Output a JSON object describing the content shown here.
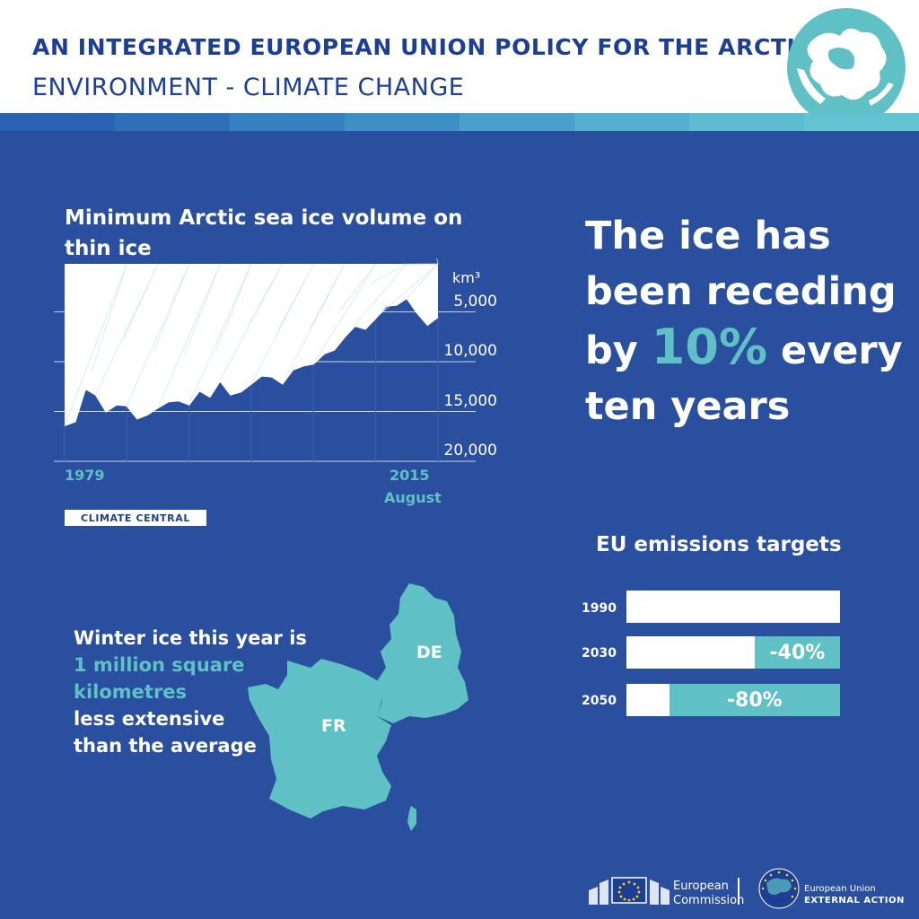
{
  "header": {
    "title": "AN INTEGRATED EUROPEAN UNION POLICY FOR THE ARCTIC",
    "subtitle": "ENVIRONMENT - CLIMATE CHANGE",
    "stripe_colors": [
      "#2a61b0",
      "#2e6fb8",
      "#3580c0",
      "#3d8fc6",
      "#4a9fcb",
      "#55afcf",
      "#5ebcd0",
      "#63c3d2"
    ]
  },
  "colors": {
    "background": "#2a4f9e",
    "accent": "#5fc0c6",
    "header_text": "#1d3f93"
  },
  "chart_data": {
    "type": "area",
    "title": "Minimum Arctic sea ice volume on thin ice",
    "unit": "km³",
    "ylim": [
      20000,
      0
    ],
    "y_ticks": [
      "5,000",
      "10,000",
      "15,000",
      "20,000"
    ],
    "y_tick_values": [
      5000,
      10000,
      15000,
      20000
    ],
    "x_labels": [
      "1979",
      "2015"
    ],
    "x_label_note": "August",
    "x": [
      1979,
      1980,
      1981,
      1982,
      1983,
      1984,
      1985,
      1986,
      1987,
      1988,
      1989,
      1990,
      1991,
      1992,
      1993,
      1994,
      1995,
      1996,
      1997,
      1998,
      1999,
      2000,
      2001,
      2002,
      2003,
      2004,
      2005,
      2006,
      2007,
      2008,
      2009,
      2010,
      2011,
      2012,
      2013,
      2014,
      2015
    ],
    "y": [
      16400,
      16000,
      12700,
      13300,
      15000,
      14300,
      14400,
      15700,
      15300,
      14600,
      14000,
      13900,
      14300,
      12900,
      13500,
      11900,
      13300,
      13000,
      12200,
      11400,
      11500,
      12200,
      10800,
      10400,
      10200,
      9200,
      8800,
      7500,
      6400,
      6700,
      5600,
      4400,
      4300,
      3600,
      5100,
      6300,
      5500
    ],
    "source": "CLIMATE CENTRAL"
  },
  "headline": {
    "line1": "The ice has",
    "line2": "been receding",
    "by": "by",
    "percent": "10%",
    "every": "every",
    "line4": "ten years"
  },
  "emissions": {
    "title": "EU emissions targets",
    "rows": [
      {
        "year": "1990",
        "label": "",
        "reduction": 0
      },
      {
        "year": "2030",
        "label": "-40%",
        "reduction": 40
      },
      {
        "year": "2050",
        "label": "-80%",
        "reduction": 80
      }
    ]
  },
  "winter": {
    "line1": "Winter ice this year is",
    "highlight1": "1 million square",
    "highlight2": "kilometres",
    "line3": "less extensive",
    "line4": "than the average"
  },
  "map": {
    "de": "DE",
    "fr": "FR"
  },
  "footer": {
    "ec_line1": "European",
    "ec_line2": "Commission",
    "eeas_line1": "European Union",
    "eeas_line2": "EXTERNAL ACTION"
  }
}
